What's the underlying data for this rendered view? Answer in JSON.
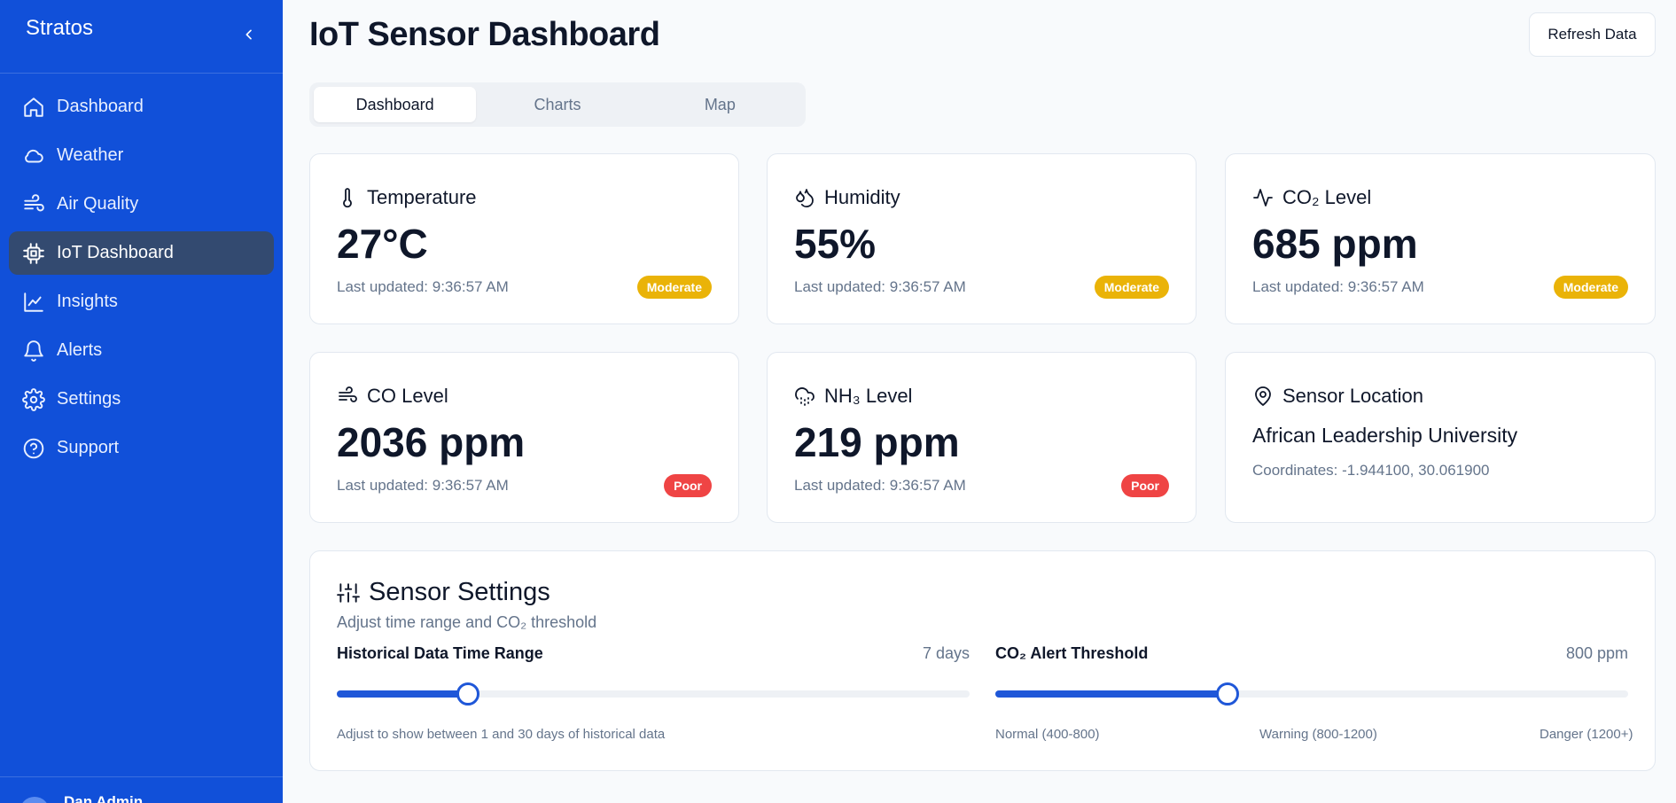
{
  "sidebar": {
    "brand": "Stratos",
    "items": [
      {
        "label": "Dashboard",
        "icon": "home-icon"
      },
      {
        "label": "Weather",
        "icon": "cloud-icon"
      },
      {
        "label": "Air Quality",
        "icon": "wind-icon"
      },
      {
        "label": "IoT Dashboard",
        "icon": "cpu-icon",
        "active": true
      },
      {
        "label": "Insights",
        "icon": "chart-line-icon"
      },
      {
        "label": "Alerts",
        "icon": "bell-icon"
      },
      {
        "label": "Settings",
        "icon": "gear-icon"
      },
      {
        "label": "Support",
        "icon": "help-circle-icon"
      }
    ],
    "footer_name": "Dan Admin"
  },
  "header": {
    "title": "IoT Sensor Dashboard",
    "refresh_label": "Refresh Data"
  },
  "tabs": [
    {
      "label": "Dashboard",
      "active": true
    },
    {
      "label": "Charts",
      "active": false
    },
    {
      "label": "Map",
      "active": false
    }
  ],
  "cards": {
    "temperature": {
      "title": "Temperature",
      "value": "27°C",
      "updated": "Last updated: 9:36:57 AM",
      "badge": "Moderate"
    },
    "humidity": {
      "title": "Humidity",
      "value": "55%",
      "updated": "Last updated: 9:36:57 AM",
      "badge": "Moderate"
    },
    "co2": {
      "title": "CO₂ Level",
      "value": "685 ppm",
      "updated": "Last updated: 9:36:57 AM",
      "badge": "Moderate"
    },
    "co": {
      "title": "CO Level",
      "value": "2036 ppm",
      "updated": "Last updated: 9:36:57 AM",
      "badge": "Poor"
    },
    "nh3": {
      "title": "NH₃ Level",
      "value": "219 ppm",
      "updated": "Last updated: 9:36:57 AM",
      "badge": "Poor"
    },
    "location": {
      "title": "Sensor Location",
      "name": "African Leadership University",
      "coords": "Coordinates: -1.944100, 30.061900"
    }
  },
  "settings": {
    "title": "Sensor Settings",
    "subtitle": "Adjust time range and CO₂ threshold",
    "time_range": {
      "label": "Historical Data Time Range",
      "value_text": "7 days",
      "value": 7,
      "min": 1,
      "max": 30,
      "help": "Adjust to show between 1 and 30 days of historical data"
    },
    "threshold": {
      "label": "CO₂ Alert Threshold",
      "value_text": "800 ppm",
      "fraction": 0.367,
      "normal": "Normal (400-800)",
      "warning": "Warning (800-1200)",
      "danger": "Danger (1200+)"
    }
  },
  "colors": {
    "sidebar_bg": "#1150d9",
    "sidebar_active": "#334a70",
    "accent": "#1f57d8",
    "moderate": "#eab308",
    "poor": "#ef4444"
  }
}
